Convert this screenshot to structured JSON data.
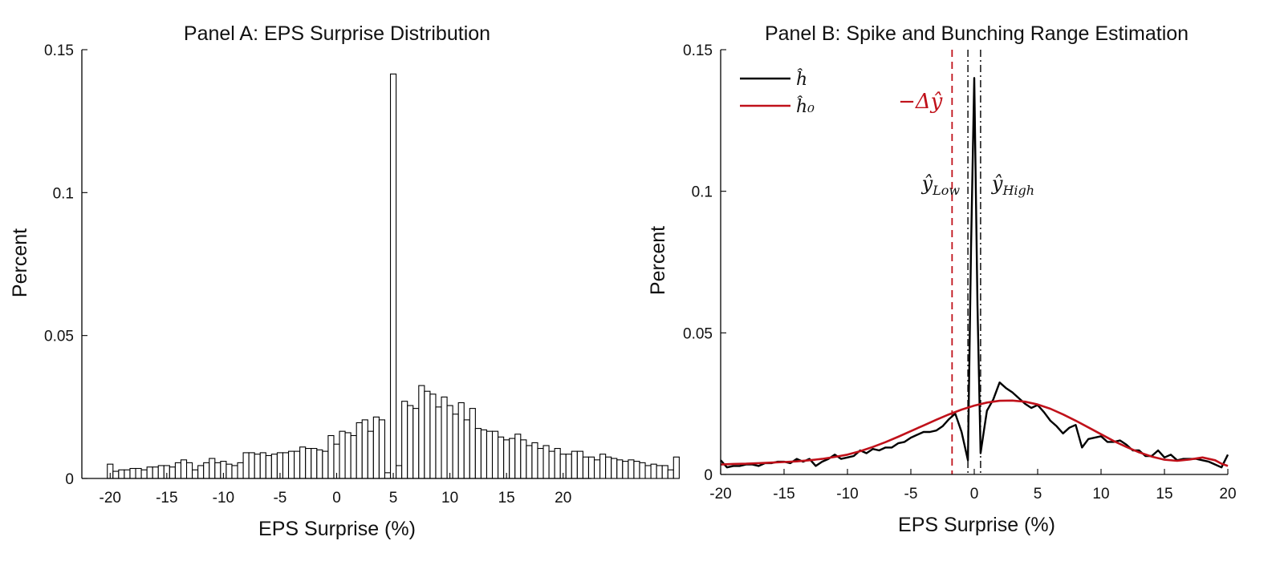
{
  "chart_data": [
    {
      "type": "bar",
      "title": "Panel A: EPS Surprise Distribution",
      "xlabel": "EPS Surprise (%)",
      "ylabel": "Percent",
      "xlim": [
        -22.5,
        22.5
      ],
      "ylim": [
        0,
        0.15
      ],
      "xticks": [
        -20,
        -15,
        -10,
        -5,
        0,
        5,
        10,
        15,
        20
      ],
      "xtick_labels": [
        "-20",
        "-15",
        "-10",
        "-5",
        "0",
        "5",
        "10",
        "15",
        "20"
      ],
      "yticks": [
        0,
        0.05,
        0.1,
        0.15
      ],
      "ytick_labels": [
        "0",
        "0.05",
        "0.1",
        "0.15"
      ],
      "bin_width": 0.5,
      "bin_start": -20.25,
      "values": [
        0.005,
        0.0025,
        0.003,
        0.003,
        0.0035,
        0.0035,
        0.003,
        0.004,
        0.004,
        0.0045,
        0.0045,
        0.004,
        0.0055,
        0.0065,
        0.0055,
        0.003,
        0.0045,
        0.0055,
        0.007,
        0.0055,
        0.006,
        0.005,
        0.0045,
        0.0055,
        0.009,
        0.009,
        0.0085,
        0.009,
        0.008,
        0.0085,
        0.009,
        0.009,
        0.0095,
        0.0095,
        0.011,
        0.0105,
        0.0105,
        0.01,
        0.0095,
        0.015,
        0.012,
        0.0165,
        0.016,
        0.015,
        0.0195,
        0.0205,
        0.0165,
        0.0215,
        0.0205,
        0.002,
        0.1415,
        0.0045,
        0.027,
        0.0255,
        0.0245,
        0.0325,
        0.0305,
        0.0295,
        0.025,
        0.0285,
        0.0255,
        0.0225,
        0.0265,
        0.0205,
        0.0245,
        0.0175,
        0.017,
        0.0165,
        0.0165,
        0.0145,
        0.0135,
        0.014,
        0.0155,
        0.0135,
        0.0115,
        0.0125,
        0.0105,
        0.0115,
        0.0095,
        0.0105,
        0.0085,
        0.0085,
        0.0095,
        0.0095,
        0.0075,
        0.0075,
        0.0065,
        0.0085,
        0.0075,
        0.007,
        0.0065,
        0.006,
        0.0065,
        0.006,
        0.0055,
        0.0045,
        0.005,
        0.0045,
        0.0045,
        0.003,
        0.0075
      ],
      "grid": false,
      "legend": "none"
    },
    {
      "type": "line",
      "title": "Panel B: Spike and Bunching Range Estimation",
      "xlabel": "EPS Surprise (%)",
      "ylabel": "Percent",
      "xlim": [
        -20,
        20
      ],
      "ylim": [
        0,
        0.15
      ],
      "xticks": [
        -20,
        -15,
        -10,
        -5,
        0,
        5,
        10,
        15,
        20
      ],
      "xtick_labels": [
        "-20",
        "-15",
        "-10",
        "-5",
        "0",
        "5",
        "10",
        "15",
        "20"
      ],
      "yticks": [
        0,
        0.05,
        0.1,
        0.15
      ],
      "ytick_labels": [
        "0",
        "0.05",
        "0.1",
        "0.15"
      ],
      "legend": "top-left",
      "series": [
        {
          "name": "ĥ",
          "color": "#000000",
          "x": [
            -20,
            -19.5,
            -19,
            -18.5,
            -18,
            -17.5,
            -17,
            -16.5,
            -16,
            -15.5,
            -15,
            -14.5,
            -14,
            -13.5,
            -13,
            -12.5,
            -12,
            -11.5,
            -11,
            -10.5,
            -10,
            -9.5,
            -9,
            -8.5,
            -8,
            -7.5,
            -7,
            -6.5,
            -6,
            -5.5,
            -5,
            -4.5,
            -4,
            -3.5,
            -3,
            -2.5,
            -2,
            -1.5,
            -1,
            -0.5,
            -0.25,
            0,
            0.25,
            0.5,
            0.75,
            1,
            1.5,
            2,
            2.5,
            3,
            3.5,
            4,
            4.5,
            5,
            5.5,
            6,
            6.5,
            7,
            7.5,
            8,
            8.5,
            9,
            9.5,
            10,
            10.5,
            11,
            11.5,
            12,
            12.5,
            13,
            13.5,
            14,
            14.5,
            15,
            15.5,
            16,
            16.5,
            17,
            17.5,
            18,
            18.5,
            19,
            19.5,
            20
          ],
          "y": [
            0.005,
            0.0025,
            0.003,
            0.003,
            0.0035,
            0.0035,
            0.003,
            0.004,
            0.004,
            0.0045,
            0.0045,
            0.004,
            0.0055,
            0.0045,
            0.0055,
            0.003,
            0.0045,
            0.0055,
            0.007,
            0.0055,
            0.006,
            0.0065,
            0.0085,
            0.0075,
            0.009,
            0.0085,
            0.0095,
            0.0095,
            0.011,
            0.0115,
            0.013,
            0.014,
            0.015,
            0.015,
            0.0155,
            0.017,
            0.0195,
            0.0215,
            0.015,
            0.005,
            0.08,
            0.14,
            0.06,
            0.0075,
            0.015,
            0.0225,
            0.0265,
            0.0325,
            0.0305,
            0.029,
            0.027,
            0.025,
            0.0235,
            0.0245,
            0.022,
            0.019,
            0.017,
            0.0145,
            0.0165,
            0.0175,
            0.0095,
            0.0125,
            0.013,
            0.0135,
            0.0115,
            0.0115,
            0.012,
            0.0105,
            0.0085,
            0.0085,
            0.0065,
            0.0065,
            0.0085,
            0.006,
            0.007,
            0.005,
            0.0055,
            0.0055,
            0.0055,
            0.005,
            0.0045,
            0.0035,
            0.0025,
            0.007
          ]
        },
        {
          "name": "ĥ₀",
          "color": "#c0111a",
          "x": [
            -20,
            -19,
            -18,
            -17,
            -16,
            -15,
            -14,
            -13,
            -12,
            -11,
            -10,
            -9,
            -8,
            -7,
            -6,
            -5,
            -4,
            -3,
            -2,
            -1,
            0,
            1,
            2,
            3,
            4,
            5,
            6,
            7,
            8,
            9,
            10,
            11,
            12,
            13,
            14,
            15,
            16,
            17,
            18,
            19,
            19.5,
            20
          ],
          "y": [
            0.0035,
            0.0037,
            0.0038,
            0.004,
            0.0042,
            0.0044,
            0.0046,
            0.005,
            0.0055,
            0.0062,
            0.007,
            0.0082,
            0.0097,
            0.0114,
            0.0133,
            0.0153,
            0.0173,
            0.0193,
            0.0212,
            0.0229,
            0.0243,
            0.0254,
            0.026,
            0.0261,
            0.0257,
            0.0247,
            0.0232,
            0.0212,
            0.019,
            0.0166,
            0.0142,
            0.0118,
            0.0097,
            0.0078,
            0.0063,
            0.0052,
            0.0048,
            0.0053,
            0.006,
            0.005,
            0.0038,
            0.003
          ]
        }
      ],
      "vlines": [
        {
          "x": -1.75,
          "style": "dashed",
          "color": "#c0111a",
          "label": "−Δŷ"
        },
        {
          "x": -0.5,
          "style": "dashdot",
          "color": "#000000",
          "label": "ŷ",
          "label_sub": "Low"
        },
        {
          "x": 0.5,
          "style": "dashdot",
          "color": "#000000",
          "label": "ŷ",
          "label_sub": "High"
        }
      ]
    }
  ]
}
